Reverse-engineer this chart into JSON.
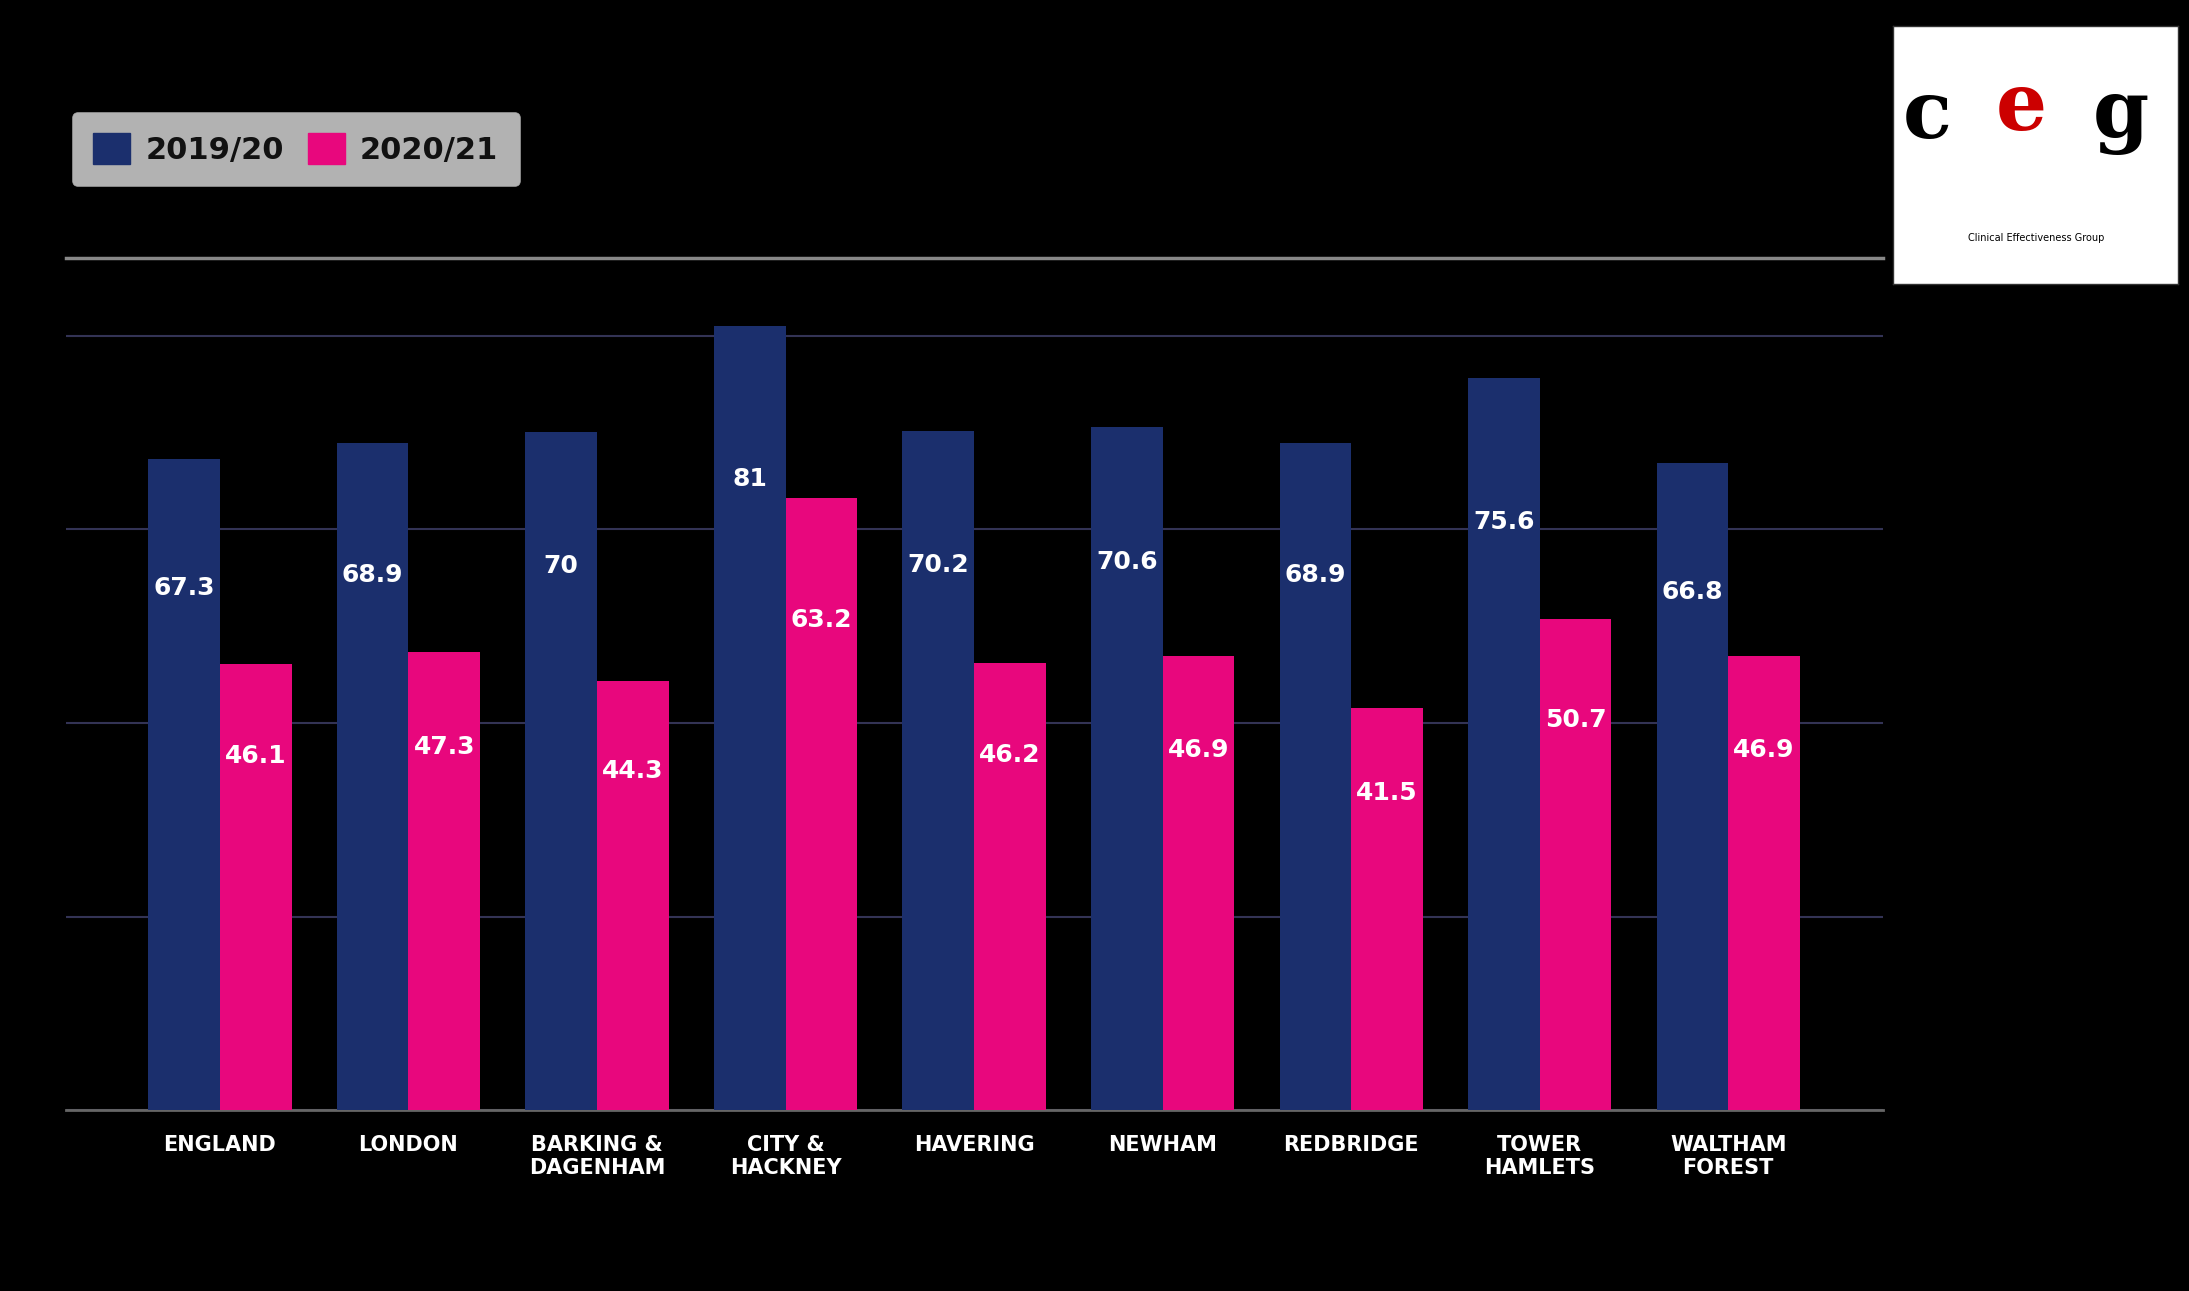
{
  "categories": [
    "ENGLAND",
    "LONDON",
    "BARKING &\nDAGENHAM",
    "CITY &\nHACKNEY",
    "HAVERING",
    "NEWHAM",
    "REDBRIDGE",
    "TOWER\nHAMLETS",
    "WALTHAM\nFOREST"
  ],
  "values_2019": [
    67.3,
    68.9,
    70.0,
    81.0,
    70.2,
    70.6,
    68.9,
    75.6,
    66.8
  ],
  "values_2020": [
    46.1,
    47.3,
    44.3,
    63.2,
    46.2,
    46.9,
    41.5,
    50.7,
    46.9
  ],
  "color_2019": "#1b2f6d",
  "color_2020": "#e8077d",
  "background_color": "#000000",
  "legend_bg": "#e0e0e0",
  "legend_text": "#111111",
  "ylim": [
    0,
    88
  ],
  "bar_width": 0.38,
  "label_2019": "2019/20",
  "label_2020": "2020/21",
  "grid_color": "#333355",
  "header_line_color": "#888888",
  "xtick_color": "#ffffff",
  "value_fontsize": 18,
  "xtick_fontsize": 15,
  "legend_fontsize": 22
}
